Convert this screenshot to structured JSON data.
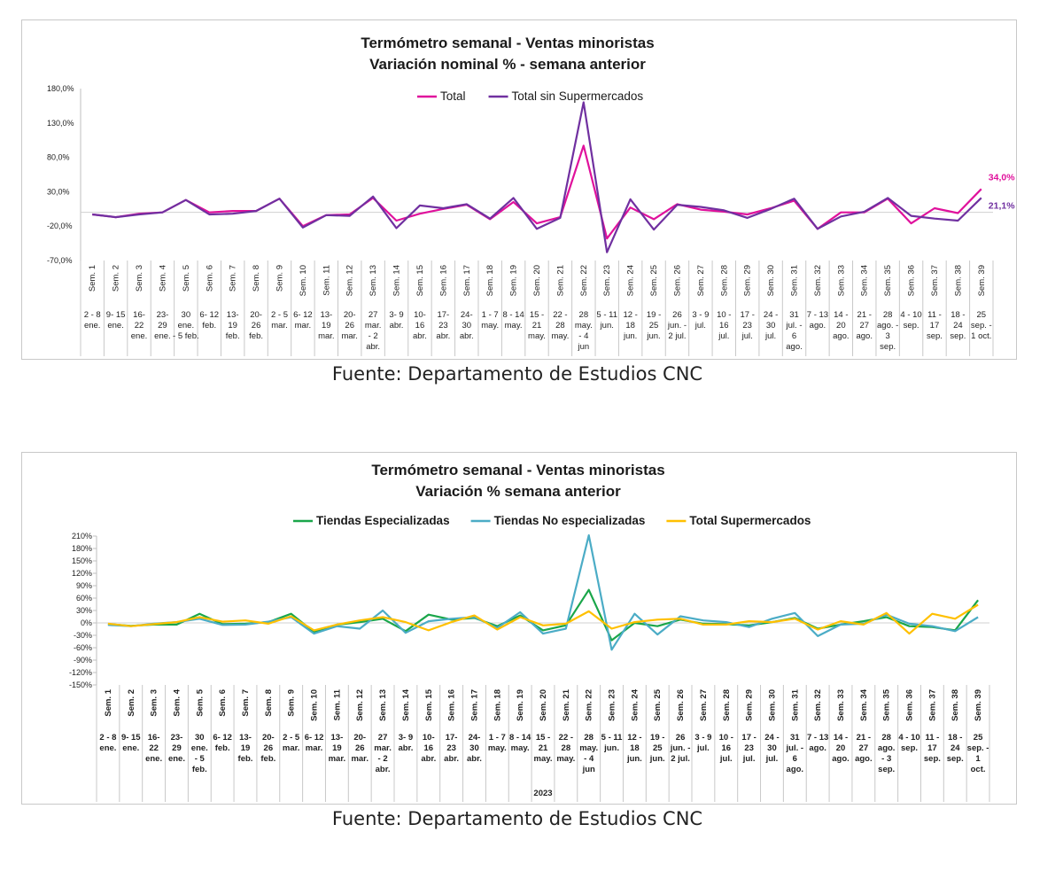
{
  "chart_data": [
    {
      "type": "line",
      "title": "Termómetro semanal - Ventas minoristas",
      "subtitle": "Variación nominal % - semana anterior",
      "ylim": [
        -70,
        180
      ],
      "yticks": [
        "180,0%",
        "130,0%",
        "80,0%",
        "30,0%",
        "-20,0%",
        "-70,0%"
      ],
      "ytick_values": [
        180,
        130,
        80,
        30,
        -20,
        -70
      ],
      "legend_position": "top",
      "grid": false,
      "weeks": [
        "Sem. 1",
        "Sem. 2",
        "Sem. 3",
        "Sem. 4",
        "Sem. 5",
        "Sem. 6",
        "Sem. 7",
        "Sem. 8",
        "Sem. 9",
        "Sem. 10",
        "Sem. 11",
        "Sem. 12",
        "Sem. 13",
        "Sem. 14",
        "Sem. 15",
        "Sem. 16",
        "Sem. 17",
        "Sem. 18",
        "Sem. 19",
        "Sem. 20",
        "Sem. 21",
        "Sem. 22",
        "Sem. 23",
        "Sem. 24",
        "Sem. 25",
        "Sem. 26",
        "Sem. 27",
        "Sem. 28",
        "Sem. 29",
        "Sem. 30",
        "Sem. 31",
        "Sem. 32",
        "Sem. 33",
        "Sem. 34",
        "Sem. 35",
        "Sem. 36",
        "Sem. 37",
        "Sem. 38",
        "Sem. 39"
      ],
      "dates": [
        [
          "2 - 8",
          "ene."
        ],
        [
          "9- 15",
          "ene."
        ],
        [
          "16-",
          "22",
          "ene."
        ],
        [
          "23-",
          "29",
          "ene."
        ],
        [
          "30",
          "ene.",
          "- 5 feb."
        ],
        [
          "6- 12",
          "feb."
        ],
        [
          "13-",
          "19",
          "feb."
        ],
        [
          "20-",
          "26",
          "feb."
        ],
        [
          "2 - 5",
          "mar."
        ],
        [
          "6- 12",
          "mar."
        ],
        [
          "13-",
          "19",
          "mar."
        ],
        [
          "20-",
          "26",
          "mar."
        ],
        [
          "27",
          "mar.",
          "- 2",
          "abr."
        ],
        [
          "3- 9",
          "abr."
        ],
        [
          "10-",
          "16",
          "abr."
        ],
        [
          "17-",
          "23",
          "abr."
        ],
        [
          "24-",
          "30",
          "abr."
        ],
        [
          "1 - 7",
          "may."
        ],
        [
          "8 - 14",
          "may."
        ],
        [
          "15 -",
          "21",
          "may."
        ],
        [
          "22 -",
          "28",
          "may."
        ],
        [
          "28",
          "may.",
          "- 4",
          "jun"
        ],
        [
          "5 - 11",
          "jun."
        ],
        [
          "12 -",
          "18",
          "jun."
        ],
        [
          "19 -",
          "25",
          "jun."
        ],
        [
          "26",
          "jun. -",
          "2 jul."
        ],
        [
          "3 - 9",
          "jul."
        ],
        [
          "10 -",
          "16",
          "jul."
        ],
        [
          "17 -",
          "23",
          "jul."
        ],
        [
          "24 -",
          "30",
          "jul."
        ],
        [
          "31",
          "jul. -",
          "6",
          "ago."
        ],
        [
          "7 - 13",
          "ago."
        ],
        [
          "14 -",
          "20",
          "ago."
        ],
        [
          "21 -",
          "27",
          "ago."
        ],
        [
          "28",
          "ago. -",
          "3",
          "sep."
        ],
        [
          "4 - 10",
          "sep."
        ],
        [
          "11 -",
          "17",
          "sep."
        ],
        [
          "18 -",
          "24",
          "sep."
        ],
        [
          "25",
          "sep. -",
          "1 oct."
        ]
      ],
      "series": [
        {
          "name": "Total",
          "color": "#e0119c",
          "values": [
            -3,
            -7,
            -2,
            0,
            18,
            0,
            2,
            2,
            20,
            -20,
            -4,
            -3,
            21,
            -12,
            -2,
            5,
            11,
            -10,
            15,
            -16,
            -7,
            97,
            -38,
            7,
            -10,
            12,
            4,
            1,
            -3,
            6,
            17,
            -24,
            0,
            0,
            20,
            -16,
            6,
            -1,
            34
          ]
        },
        {
          "name": "Total sin Supermercados",
          "color": "#7030a0",
          "values": [
            -3,
            -7,
            -3,
            0,
            18,
            -3,
            -2,
            2,
            20,
            -22,
            -4,
            -5,
            23,
            -23,
            10,
            6,
            12,
            -9,
            21,
            -24,
            -8,
            160,
            -58,
            19,
            -25,
            11,
            8,
            3,
            -8,
            5,
            20,
            -24,
            -6,
            1,
            21,
            -5,
            -9,
            -12,
            21.1
          ]
        }
      ],
      "annotations": [
        {
          "label": "34,0%",
          "series": "Total",
          "index": 38
        },
        {
          "label": "21,1%",
          "series": "Total sin Supermercados",
          "index": 38
        }
      ]
    },
    {
      "type": "line",
      "title": "Termómetro semanal - Ventas minoristas",
      "subtitle": "Variación % semana anterior",
      "ylim": [
        -150,
        210
      ],
      "yticks": [
        "210%",
        "180%",
        "150%",
        "120%",
        "90%",
        "60%",
        "30%",
        "0%",
        "-30%",
        "-60%",
        "-90%",
        "-120%",
        "-150%"
      ],
      "ytick_values": [
        210,
        180,
        150,
        120,
        90,
        60,
        30,
        0,
        -30,
        -60,
        -90,
        -120,
        -150
      ],
      "xlabel": "2023",
      "legend_position": "top",
      "grid": false,
      "weeks": [
        "Sem. 1",
        "Sem. 2",
        "Sem. 3",
        "Sem. 4",
        "Sem. 5",
        "Sem. 6",
        "Sem. 7",
        "Sem. 8",
        "Sem. 9",
        "Sem. 10",
        "Sem. 11",
        "Sem. 12",
        "Sem. 13",
        "Sem. 14",
        "Sem. 15",
        "Sem. 16",
        "Sem. 17",
        "Sem. 18",
        "Sem. 19",
        "Sem. 20",
        "Sem. 21",
        "Sem. 22",
        "Sem. 23",
        "Sem. 24",
        "Sem. 25",
        "Sem. 26",
        "Sem. 27",
        "Sem. 28",
        "Sem. 29",
        "Sem. 30",
        "Sem. 31",
        "Sem. 32",
        "Sem. 33",
        "Sem. 34",
        "Sem. 35",
        "Sem. 36",
        "Sem. 37",
        "Sem. 38",
        "Sem. 39"
      ],
      "dates": [
        [
          "2 - 8",
          "ene."
        ],
        [
          "9- 15",
          "ene."
        ],
        [
          "16-",
          "22",
          "ene."
        ],
        [
          "23-",
          "29",
          "ene."
        ],
        [
          "30",
          "ene.",
          "- 5",
          "feb."
        ],
        [
          "6- 12",
          "feb."
        ],
        [
          "13-",
          "19",
          "feb."
        ],
        [
          "20-",
          "26",
          "feb."
        ],
        [
          "2 - 5",
          "mar."
        ],
        [
          "6- 12",
          "mar."
        ],
        [
          "13-",
          "19",
          "mar."
        ],
        [
          "20-",
          "26",
          "mar."
        ],
        [
          "27",
          "mar.",
          "- 2",
          "abr."
        ],
        [
          "3- 9",
          "abr."
        ],
        [
          "10-",
          "16",
          "abr."
        ],
        [
          "17-",
          "23",
          "abr."
        ],
        [
          "24-",
          "30",
          "abr."
        ],
        [
          "1 - 7",
          "may."
        ],
        [
          "8 - 14",
          "may."
        ],
        [
          "15 -",
          "21",
          "may."
        ],
        [
          "22 -",
          "28",
          "may."
        ],
        [
          "28",
          "may.",
          "- 4",
          "jun"
        ],
        [
          "5 - 11",
          "jun."
        ],
        [
          "12 -",
          "18",
          "jun."
        ],
        [
          "19 -",
          "25",
          "jun."
        ],
        [
          "26",
          "jun. -",
          "2 jul."
        ],
        [
          "3 - 9",
          "jul."
        ],
        [
          "10 -",
          "16",
          "jul."
        ],
        [
          "17 -",
          "23",
          "jul."
        ],
        [
          "24 -",
          "30",
          "jul."
        ],
        [
          "31",
          "jul. -",
          "6",
          "ago."
        ],
        [
          "7 - 13",
          "ago."
        ],
        [
          "14 -",
          "20",
          "ago."
        ],
        [
          "21 -",
          "27",
          "ago."
        ],
        [
          "28",
          "ago.",
          "- 3",
          "sep."
        ],
        [
          "4 - 10",
          "sep."
        ],
        [
          "11 -",
          "17",
          "sep."
        ],
        [
          "18 -",
          "24",
          "sep."
        ],
        [
          "25",
          "sep. -",
          "1",
          "oct."
        ]
      ],
      "series": [
        {
          "name": "Tiendas Especializadas",
          "color": "#1aa64a",
          "values": [
            -3,
            -7,
            -4,
            -4,
            22,
            -3,
            -2,
            2,
            22,
            -22,
            -4,
            2,
            10,
            -20,
            20,
            8,
            12,
            -8,
            18,
            -18,
            -6,
            80,
            -42,
            0,
            -8,
            8,
            -2,
            -3,
            -6,
            2,
            12,
            -14,
            -4,
            4,
            14,
            -8,
            -10,
            -18,
            55
          ]
        },
        {
          "name": "Tiendas No especializadas",
          "color": "#4bacc6",
          "values": [
            -5,
            -8,
            -2,
            2,
            10,
            -5,
            -4,
            3,
            14,
            -26,
            -8,
            -14,
            30,
            -24,
            4,
            10,
            14,
            -12,
            26,
            -26,
            -14,
            212,
            -65,
            22,
            -28,
            16,
            6,
            2,
            -10,
            10,
            24,
            -32,
            -4,
            -2,
            20,
            -2,
            -8,
            -20,
            14
          ]
        },
        {
          "name": "Total Supermercados",
          "color": "#ffc000",
          "values": [
            -2,
            -8,
            -3,
            2,
            14,
            3,
            6,
            -2,
            16,
            -18,
            -4,
            6,
            14,
            2,
            -18,
            2,
            18,
            -16,
            14,
            -6,
            -2,
            28,
            -14,
            2,
            8,
            10,
            -4,
            -4,
            4,
            2,
            10,
            -16,
            4,
            -4,
            24,
            -26,
            22,
            10,
            44
          ]
        }
      ]
    }
  ],
  "sources": [
    "Fuente: Departamento de Estudios CNC",
    "Fuente: Departamento de Estudios CNC"
  ]
}
